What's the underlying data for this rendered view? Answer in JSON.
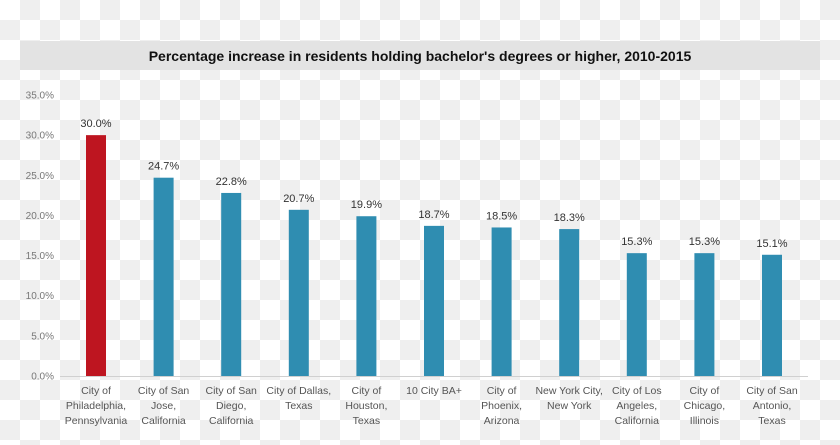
{
  "chart_data": {
    "type": "bar",
    "title": "Percentage increase in residents holding bachelor's degrees or higher, 2010-2015",
    "categories": [
      [
        "City of",
        "Philadelphia,",
        "Pennsylvania"
      ],
      [
        "City of San",
        "Jose,",
        "California"
      ],
      [
        "City of San",
        "Diego,",
        "California"
      ],
      [
        "City of Dallas,",
        "Texas"
      ],
      [
        "City of",
        "Houston,",
        "Texas"
      ],
      [
        "10 City BA+"
      ],
      [
        "City of",
        "Phoenix,",
        "Arizona"
      ],
      [
        "New York City,",
        "New York"
      ],
      [
        "City of Los",
        "Angeles,",
        "California"
      ],
      [
        "City of",
        "Chicago,",
        "Illinois"
      ],
      [
        "City of San",
        "Antonio,",
        "Texas"
      ]
    ],
    "values": [
      30.0,
      24.7,
      22.8,
      20.7,
      19.9,
      18.7,
      18.5,
      18.3,
      15.3,
      15.3,
      15.1
    ],
    "data_labels": [
      "30.0%",
      "24.7%",
      "22.8%",
      "20.7%",
      "19.9%",
      "18.7%",
      "18.5%",
      "18.3%",
      "15.3%",
      "15.3%",
      "15.1%"
    ],
    "yticks": [
      "0.0%",
      "5.0%",
      "10.0%",
      "15.0%",
      "20.0%",
      "25.0%",
      "30.0%",
      "35.0%"
    ],
    "ylim": [
      0,
      35
    ],
    "grid": false,
    "colors": {
      "highlight": "#be1520",
      "default": "#2f8db1"
    },
    "highlight_index": 0
  }
}
